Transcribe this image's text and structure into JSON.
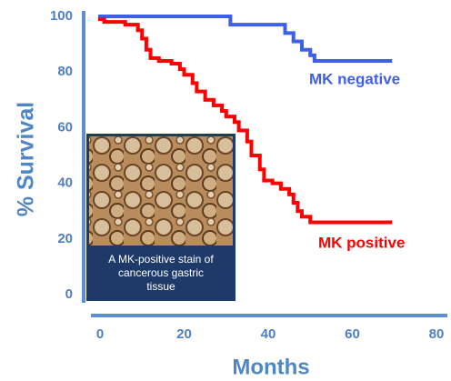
{
  "chart_data": {
    "type": "line",
    "step": true,
    "y_label": "% Survival",
    "x_label": "Months",
    "xlim": [
      0,
      80
    ],
    "xticks": [
      0,
      20,
      40,
      60,
      80
    ],
    "ylim": [
      0,
      100
    ],
    "yticks": [
      0,
      20,
      40,
      60,
      80,
      100
    ],
    "series": [
      {
        "name": "MK negative",
        "color": "#3f5fe6",
        "x": [
          0,
          31,
          44,
          46,
          48,
          50,
          51,
          69
        ],
        "values": [
          100,
          97,
          94,
          91,
          88,
          86,
          84,
          84
        ]
      },
      {
        "name": "MK positive",
        "color": "#ff0000",
        "x": [
          0,
          1,
          6,
          9,
          10,
          11,
          12,
          14,
          17,
          19,
          20,
          22,
          23,
          25,
          27,
          29,
          30,
          32,
          33,
          35,
          36,
          38,
          39,
          41,
          43,
          45,
          46,
          47,
          48,
          50,
          69
        ],
        "values": [
          99,
          98,
          97,
          95,
          92,
          88,
          85,
          84,
          83,
          81,
          79,
          76,
          73,
          70,
          68,
          66,
          64,
          62,
          59,
          55,
          50,
          45,
          41,
          40,
          38,
          36,
          33,
          30,
          28,
          26,
          26
        ]
      }
    ],
    "inset_caption": [
      "A MK-positive stain of",
      "cancerous gastric",
      "tissue"
    ]
  }
}
